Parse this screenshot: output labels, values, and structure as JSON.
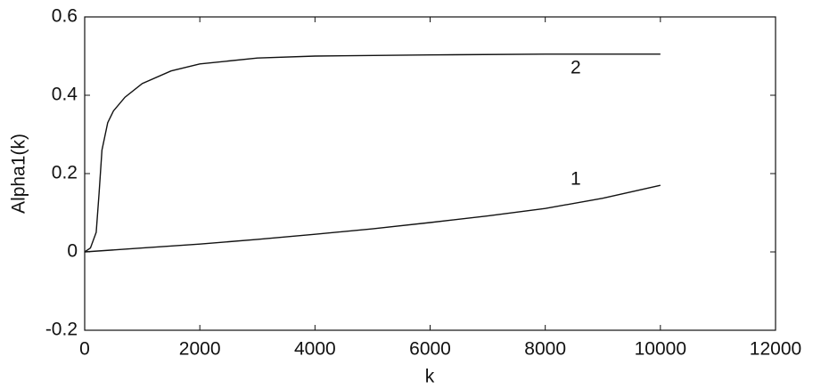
{
  "chart_data": {
    "type": "line",
    "x_label": "k",
    "y_label": "Alpha1(k)",
    "xlim": [
      0,
      12000
    ],
    "xticks": [
      0,
      2000,
      4000,
      6000,
      8000,
      10000,
      12000
    ],
    "ylim": [
      -0.2,
      0.6
    ],
    "yticks": [
      -0.2,
      0,
      0.2,
      0.4,
      0.6
    ],
    "grid": false,
    "series": [
      {
        "name": "1",
        "color": "#111111",
        "x": [
          0,
          1000,
          2000,
          3000,
          4000,
          5000,
          6000,
          7000,
          8000,
          9000,
          10000
        ],
        "values": [
          0,
          0.01,
          0.02,
          0.032,
          0.045,
          0.059,
          0.075,
          0.092,
          0.111,
          0.137,
          0.17
        ]
      },
      {
        "name": "2",
        "color": "#111111",
        "x": [
          0,
          100,
          200,
          250,
          300,
          400,
          500,
          700,
          1000,
          1500,
          2000,
          3000,
          4000,
          6000,
          8000,
          10000
        ],
        "values": [
          0,
          0.01,
          0.05,
          0.15,
          0.26,
          0.33,
          0.36,
          0.395,
          0.43,
          0.462,
          0.48,
          0.495,
          0.5,
          0.503,
          0.505,
          0.505
        ]
      }
    ]
  }
}
